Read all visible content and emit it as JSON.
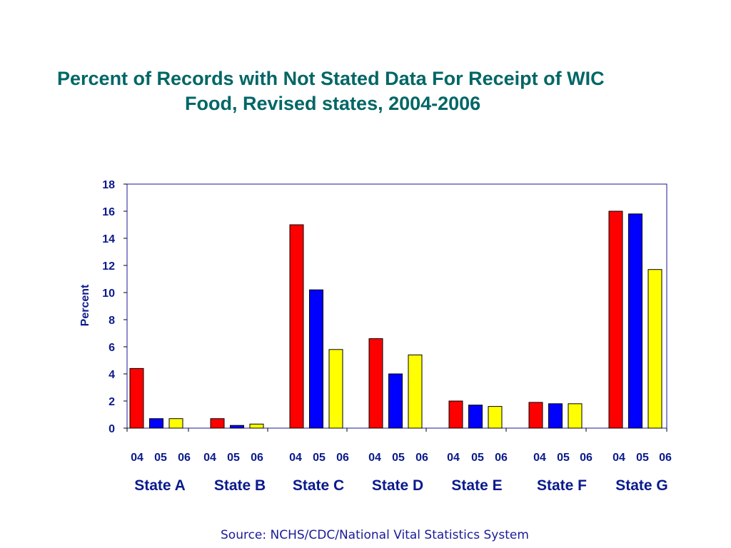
{
  "slide": {
    "title_line_1": "Percent of Records with Not Stated Data For Receipt of WIC",
    "title_line_2": "Food, Revised states, 2004-2006",
    "source": "Source: NCHS/CDC/National Vital Statistics System"
  },
  "colors": {
    "title": "#006666",
    "axis_text": "#0a1a8c",
    "source_text": "#1a1a99",
    "plot_border": "#1a1a99",
    "year_2004": "#ff0000",
    "year_2005": "#0000ff",
    "year_2006": "#ffff00"
  },
  "chart_data": {
    "type": "bar",
    "title": "Percent of Records with Not Stated Data For Receipt of WIC Food, Revised states, 2004-2006",
    "ylabel": "Percent",
    "xlabel": "",
    "ylim": [
      0,
      18
    ],
    "yticks": [
      0,
      2,
      4,
      6,
      8,
      10,
      12,
      14,
      16,
      18
    ],
    "grid": false,
    "legend": "none",
    "categories": [
      "State A",
      "State B",
      "State C",
      "State D",
      "State E",
      "State F",
      "State G"
    ],
    "year_labels": [
      "04",
      "05",
      "06"
    ],
    "series": [
      {
        "color": "#ff0000",
        "values": [
          4.4,
          0.7,
          15.0,
          6.6,
          2.0,
          1.9,
          16.0
        ]
      },
      {
        "color": "#0000ff",
        "values": [
          0.7,
          0.2,
          10.2,
          4.0,
          1.7,
          1.8,
          15.8
        ]
      },
      {
        "color": "#ffff00",
        "values": [
          0.7,
          0.3,
          5.8,
          5.4,
          1.6,
          1.8,
          11.7
        ]
      }
    ]
  }
}
